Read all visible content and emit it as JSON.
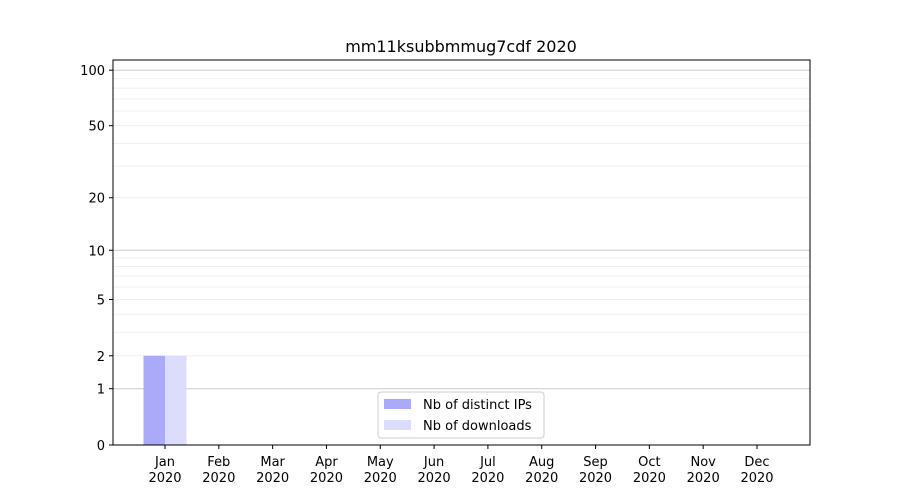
{
  "chart_data": {
    "type": "bar",
    "title": "mm11ksubbmmug7cdf 2020",
    "xlabel": "",
    "ylabel": "",
    "y_scale": "log(1+y)",
    "ylim": [
      0,
      117
    ],
    "y_ticks": [
      0,
      1,
      2,
      5,
      10,
      20,
      50,
      100
    ],
    "y_minor_gridlines": [
      3,
      4,
      6,
      7,
      8,
      9,
      30,
      40,
      60,
      70,
      80,
      90
    ],
    "grid": true,
    "legend_position": "bottom-center",
    "categories": [
      "Jan\n2020",
      "Feb\n2020",
      "Mar\n2020",
      "Apr\n2020",
      "May\n2020",
      "Jun\n2020",
      "Jul\n2020",
      "Aug\n2020",
      "Sep\n2020",
      "Oct\n2020",
      "Nov\n2020",
      "Dec\n2020"
    ],
    "series": [
      {
        "name": "Nb of distinct IPs",
        "color": "#aaaaf8",
        "values": [
          2,
          0,
          0,
          0,
          0,
          0,
          0,
          0,
          0,
          0,
          0,
          0
        ]
      },
      {
        "name": "Nb of downloads",
        "color": "#dcdcfc",
        "values": [
          2,
          0,
          0,
          0,
          0,
          0,
          0,
          0,
          0,
          0,
          0,
          0
        ]
      }
    ]
  }
}
